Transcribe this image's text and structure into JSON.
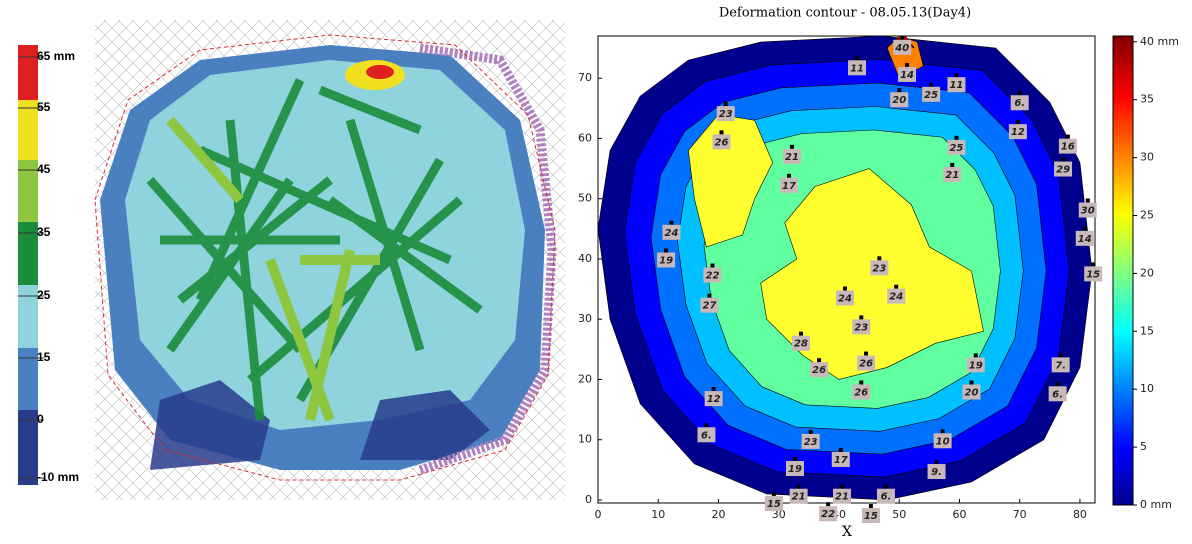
{
  "left_panel": {
    "colorbar_ticks": [
      {
        "value": 65,
        "label": "65 mm"
      },
      55,
      45,
      35,
      25,
      15,
      0,
      {
        "value": -10,
        "label": "-10 mm"
      }
    ]
  },
  "right_panel": {
    "title": "Deformation contour - 08.05.13(Day4)",
    "xlabel": "X",
    "xlim": [
      0,
      82.5
    ],
    "ylim": [
      -0.5,
      77
    ],
    "xticks": [
      0,
      10,
      20,
      30,
      40,
      50,
      60,
      70,
      80
    ],
    "yticks": [
      0,
      10,
      20,
      30,
      40,
      50,
      60,
      70
    ],
    "colorbar_lim": [
      0,
      40.5
    ],
    "colorbar_ticks": [
      {
        "value": 0,
        "label": "0 mm"
      },
      5,
      10,
      15,
      20,
      25,
      30,
      35,
      {
        "value": 40,
        "label": "40 mm"
      }
    ],
    "points": [
      {
        "x": 50.5,
        "y": 76.7,
        "label": "40"
      },
      {
        "x": 43,
        "y": 73.3,
        "label": "11"
      },
      {
        "x": 51.3,
        "y": 72.2,
        "label": "14"
      },
      {
        "x": 59.5,
        "y": 70.5,
        "label": "11"
      },
      {
        "x": 50,
        "y": 68,
        "label": "20"
      },
      {
        "x": 55.3,
        "y": 68.9,
        "label": "25"
      },
      {
        "x": 70,
        "y": 67.5,
        "label": "6."
      },
      {
        "x": 21.2,
        "y": 65.7,
        "label": "23"
      },
      {
        "x": 20.5,
        "y": 61,
        "label": "26"
      },
      {
        "x": 69.7,
        "y": 62.7,
        "label": "12"
      },
      {
        "x": 78,
        "y": 60.3,
        "label": "16"
      },
      {
        "x": 59.5,
        "y": 60.1,
        "label": "25"
      },
      {
        "x": 32.2,
        "y": 58.6,
        "label": "21"
      },
      {
        "x": 58.8,
        "y": 55.6,
        "label": "21"
      },
      {
        "x": 77.2,
        "y": 56.5,
        "label": "29"
      },
      {
        "x": 31.7,
        "y": 53.8,
        "label": "17"
      },
      {
        "x": 81.3,
        "y": 49.7,
        "label": "30"
      },
      {
        "x": 12.2,
        "y": 46,
        "label": "24"
      },
      {
        "x": 80.8,
        "y": 45,
        "label": "14"
      },
      {
        "x": 11.3,
        "y": 41.4,
        "label": "19"
      },
      {
        "x": 46.7,
        "y": 40.1,
        "label": "23"
      },
      {
        "x": 82.2,
        "y": 39.1,
        "label": "15"
      },
      {
        "x": 19,
        "y": 38.9,
        "label": "22"
      },
      {
        "x": 49.5,
        "y": 35.4,
        "label": "24"
      },
      {
        "x": 41,
        "y": 35.1,
        "label": "24"
      },
      {
        "x": 18.5,
        "y": 33.9,
        "label": "27"
      },
      {
        "x": 43.7,
        "y": 30.3,
        "label": "23"
      },
      {
        "x": 33.7,
        "y": 27.6,
        "label": "28"
      },
      {
        "x": 36.7,
        "y": 23.2,
        "label": "26"
      },
      {
        "x": 44.5,
        "y": 24.3,
        "label": "26"
      },
      {
        "x": 62.7,
        "y": 24,
        "label": "19"
      },
      {
        "x": 76.8,
        "y": 24,
        "label": "7."
      },
      {
        "x": 43.7,
        "y": 19.5,
        "label": "26"
      },
      {
        "x": 62,
        "y": 19.5,
        "label": "20"
      },
      {
        "x": 76.3,
        "y": 19.2,
        "label": "6."
      },
      {
        "x": 19.2,
        "y": 18.4,
        "label": "12"
      },
      {
        "x": 18,
        "y": 12.4,
        "label": "6."
      },
      {
        "x": 57.2,
        "y": 11.4,
        "label": "10"
      },
      {
        "x": 35.3,
        "y": 11.3,
        "label": "23"
      },
      {
        "x": 40.3,
        "y": 8.3,
        "label": "17"
      },
      {
        "x": 32.7,
        "y": 6.8,
        "label": "19"
      },
      {
        "x": 56.2,
        "y": 6.3,
        "label": "9."
      },
      {
        "x": 33.3,
        "y": 2.2,
        "label": "21"
      },
      {
        "x": 40.5,
        "y": 2.2,
        "label": "21"
      },
      {
        "x": 47.8,
        "y": 2.2,
        "label": "6."
      },
      {
        "x": 29.2,
        "y": 1,
        "label": "15"
      },
      {
        "x": 38.2,
        "y": -0.7,
        "label": "22"
      },
      {
        "x": 45.3,
        "y": -1,
        "label": "15"
      }
    ]
  }
}
